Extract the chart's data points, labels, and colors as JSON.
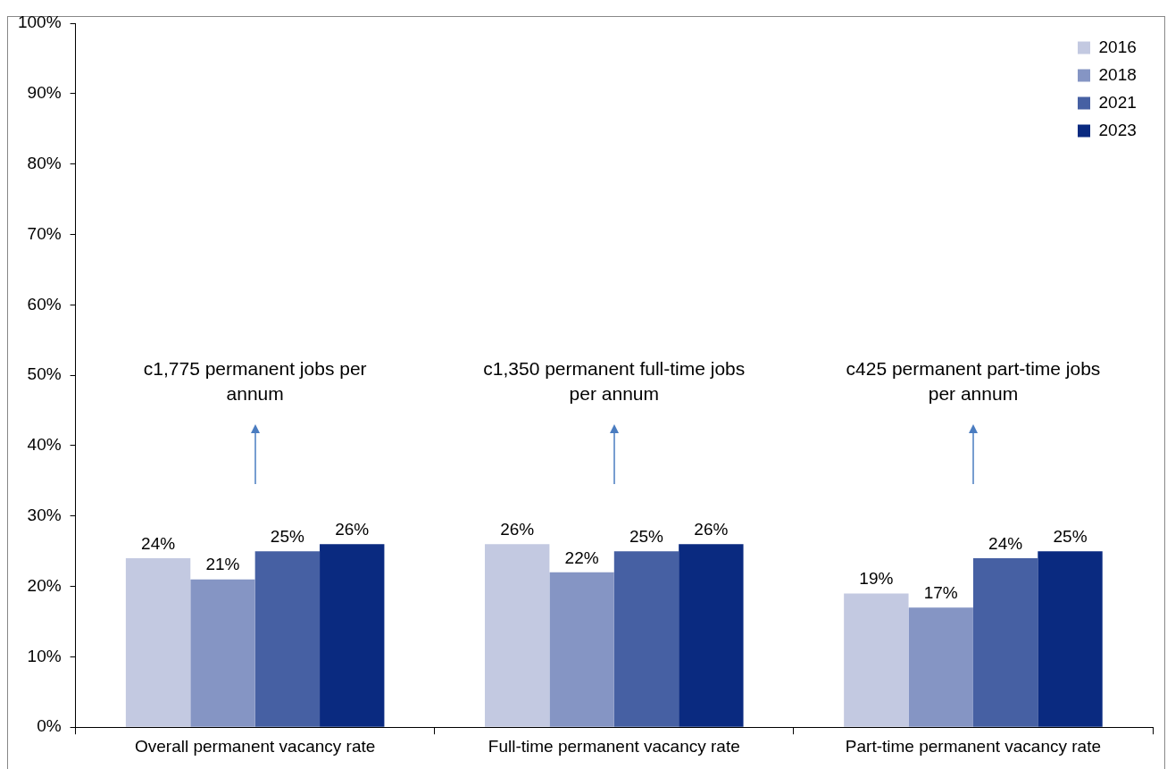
{
  "chart_data": {
    "type": "bar",
    "categories": [
      "Overall permanent vacancy rate",
      "Full-time permanent vacancy rate",
      "Part-time permanent vacancy rate"
    ],
    "series": [
      {
        "name": "2016",
        "color": "#c3c9e1",
        "values": [
          24,
          26,
          19
        ],
        "value_labels": [
          "24%",
          "26%",
          "19%"
        ]
      },
      {
        "name": "2018",
        "color": "#8595c4",
        "values": [
          21,
          22,
          17
        ],
        "value_labels": [
          "21%",
          "22%",
          "17%"
        ]
      },
      {
        "name": "2021",
        "color": "#4660a3",
        "values": [
          25,
          25,
          24
        ],
        "value_labels": [
          "25%",
          "25%",
          "24%"
        ]
      },
      {
        "name": "2023",
        "color": "#0a2a80",
        "values": [
          26,
          26,
          25
        ],
        "value_labels": [
          "26%",
          "26%",
          "25%"
        ]
      }
    ],
    "ylim": [
      0,
      100
    ],
    "yticks": [
      {
        "value": 0,
        "label": "0%"
      },
      {
        "value": 10,
        "label": "10%"
      },
      {
        "value": 20,
        "label": "20%"
      },
      {
        "value": 30,
        "label": "30%"
      },
      {
        "value": 40,
        "label": "40%"
      },
      {
        "value": 50,
        "label": "50%"
      },
      {
        "value": 60,
        "label": "60%"
      },
      {
        "value": 70,
        "label": "70%"
      },
      {
        "value": 80,
        "label": "80%"
      },
      {
        "value": 90,
        "label": "90%"
      },
      {
        "value": 100,
        "label": "100%"
      }
    ],
    "grid": false,
    "legend": "top right",
    "annotations": [
      "c1,775 permanent jobs per annum",
      "c1,350 permanent full-time jobs per annum",
      "c425 permanent part-time jobs per annum"
    ]
  }
}
